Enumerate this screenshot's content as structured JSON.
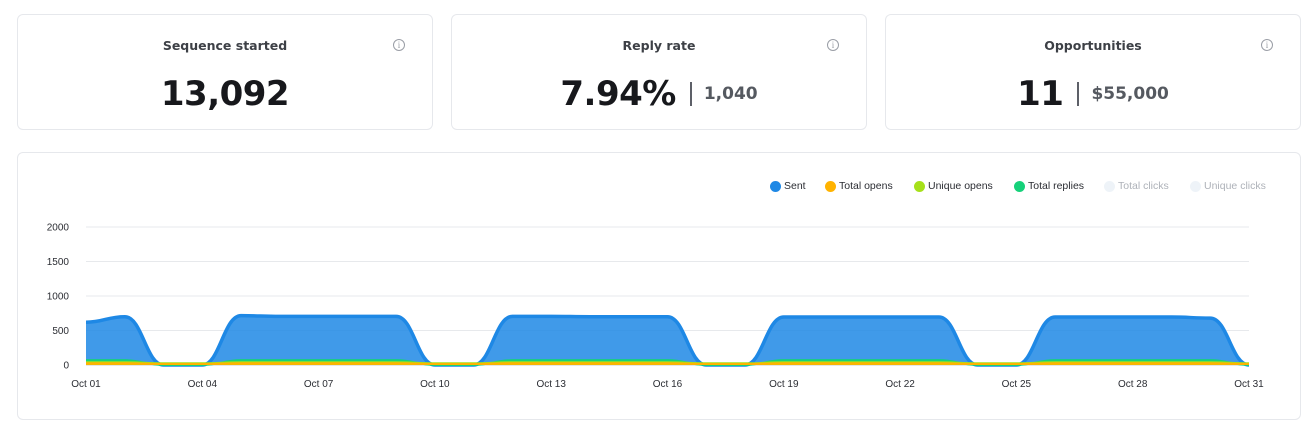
{
  "cards": [
    {
      "title": "Sequence started",
      "value": "13,092",
      "sub": ""
    },
    {
      "title": "Reply rate",
      "value": "7.94%",
      "sub": "1,040"
    },
    {
      "title": "Opportunities",
      "value": "11",
      "sub": "$55,000"
    }
  ],
  "info_glyph": "i",
  "icons": {
    "info": "info-circle-icon"
  },
  "legend": [
    {
      "name": "Sent",
      "color": "#1e88e5",
      "enabled": true
    },
    {
      "name": "Total opens",
      "color": "#ffb300",
      "enabled": true
    },
    {
      "name": "Unique opens",
      "color": "#a6e01a",
      "enabled": true
    },
    {
      "name": "Total replies",
      "color": "#16d17a",
      "enabled": true
    },
    {
      "name": "Total clicks",
      "color": "#eef3f8",
      "enabled": false
    },
    {
      "name": "Unique clicks",
      "color": "#eef3f8",
      "enabled": false
    }
  ],
  "chart_data": {
    "type": "area",
    "ylim": [
      0,
      2000
    ],
    "y_ticks": [
      0,
      500,
      1000,
      1500,
      2000
    ],
    "x_labels": [
      "Oct 01",
      "Oct 04",
      "Oct 07",
      "Oct 10",
      "Oct 13",
      "Oct 16",
      "Oct 19",
      "Oct 22",
      "Oct 25",
      "Oct 28",
      "Oct 31"
    ],
    "x": [
      "Oct 01",
      "Oct 02",
      "Oct 03",
      "Oct 04",
      "Oct 05",
      "Oct 06",
      "Oct 07",
      "Oct 08",
      "Oct 09",
      "Oct 10",
      "Oct 11",
      "Oct 12",
      "Oct 13",
      "Oct 14",
      "Oct 15",
      "Oct 16",
      "Oct 17",
      "Oct 18",
      "Oct 19",
      "Oct 20",
      "Oct 21",
      "Oct 22",
      "Oct 23",
      "Oct 24",
      "Oct 25",
      "Oct 26",
      "Oct 27",
      "Oct 28",
      "Oct 29",
      "Oct 30",
      "Oct 31"
    ],
    "series": [
      {
        "name": "Sent",
        "color": "#1e88e5",
        "values": [
          620,
          700,
          0,
          0,
          715,
          705,
          705,
          705,
          705,
          0,
          0,
          705,
          705,
          700,
          700,
          700,
          0,
          0,
          695,
          695,
          695,
          695,
          695,
          0,
          0,
          695,
          695,
          695,
          695,
          680,
          0
        ]
      },
      {
        "name": "Total replies",
        "color": "#16d17a",
        "values": [
          70,
          70,
          0,
          0,
          70,
          70,
          70,
          70,
          70,
          0,
          0,
          70,
          70,
          70,
          70,
          70,
          0,
          0,
          70,
          70,
          70,
          70,
          70,
          0,
          0,
          70,
          70,
          70,
          70,
          70,
          0
        ]
      },
      {
        "name": "Unique opens",
        "color": "#a6e01a",
        "values": [
          40,
          40,
          25,
          25,
          40,
          40,
          40,
          40,
          40,
          25,
          25,
          40,
          40,
          40,
          40,
          40,
          25,
          25,
          40,
          40,
          40,
          40,
          40,
          25,
          25,
          40,
          40,
          40,
          40,
          40,
          25
        ]
      },
      {
        "name": "Total opens",
        "color": "#ffb300",
        "values": [
          25,
          25,
          15,
          15,
          25,
          25,
          25,
          25,
          25,
          15,
          15,
          25,
          25,
          25,
          25,
          25,
          15,
          15,
          25,
          25,
          25,
          25,
          25,
          15,
          15,
          25,
          25,
          25,
          25,
          25,
          15
        ]
      }
    ]
  }
}
